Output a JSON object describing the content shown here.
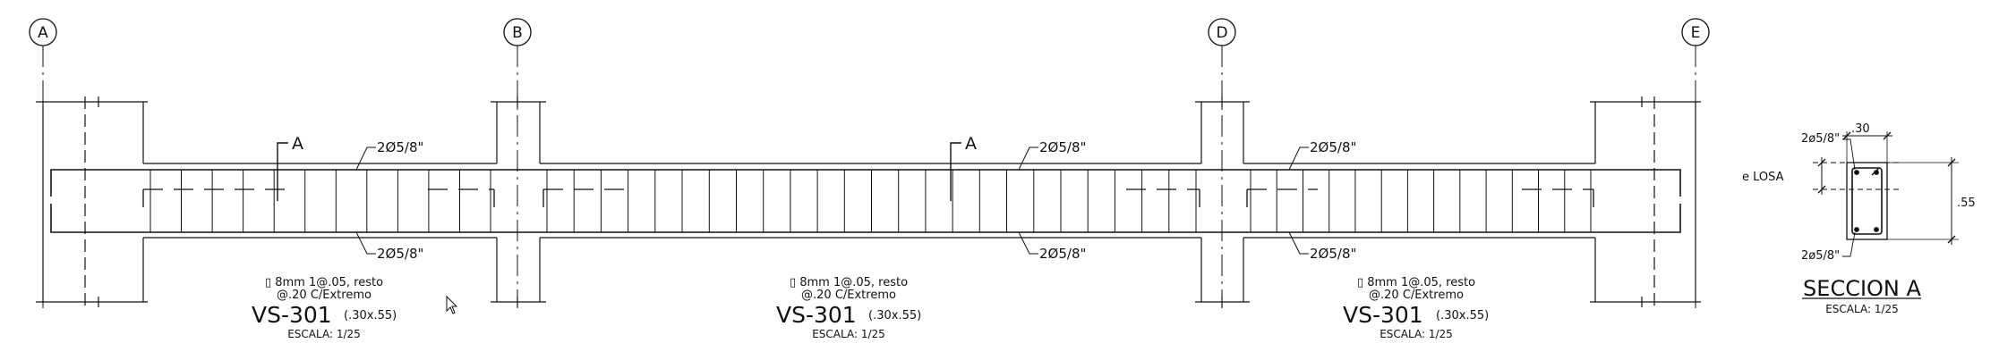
{
  "axes": [
    "A",
    "B",
    "D",
    "E"
  ],
  "beam": {
    "top_bars": "2Ø5/8\"",
    "bottom_bars": "2Ø5/8\"",
    "stirrup_note_1": "▯ 8mm 1@.05, resto",
    "stirrup_note_2": "@.20 C/Extremo",
    "name": "VS-301",
    "size": "(.30x.55)",
    "scale": "ESCALA: 1/25",
    "cut_label": "A"
  },
  "section": {
    "top_bars": "2ø5/8\"",
    "bottom_bars": "2ø5/8\"",
    "width": ".30",
    "height": ".55",
    "slab": "e LOSA",
    "title": "SECCION A",
    "scale": "ESCALA: 1/25"
  },
  "colors": {
    "line": "#111111",
    "background": "#ffffff"
  }
}
